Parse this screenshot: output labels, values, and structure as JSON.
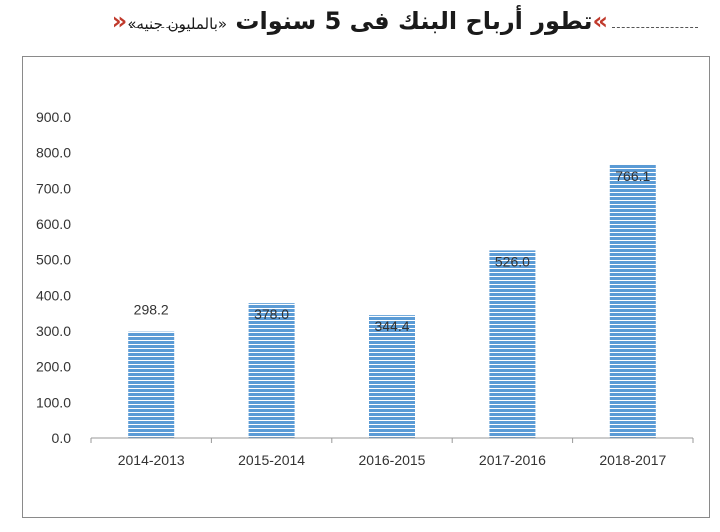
{
  "header": {
    "title": "تطور أرباح البنك فى 5 سنوات",
    "unit": "«بالمليون جنيه»",
    "quote_open": "»",
    "quote_close": "«"
  },
  "colors": {
    "bar_fill": "#5b9bd5",
    "bar_stripe": "#ffffff",
    "axis": "#999999"
  },
  "chart_data": {
    "type": "bar",
    "title": "",
    "xlabel": "",
    "ylabel": "",
    "categories": [
      "2014-2013",
      "2015-2014",
      "2016-2015",
      "2017-2016",
      "2018-2017"
    ],
    "values": [
      298.2,
      378.0,
      344.4,
      526.0,
      766.1
    ],
    "data_labels": [
      "298.2",
      "378.0",
      "344.4",
      "526.0",
      "766.1"
    ],
    "ylim": [
      0,
      900
    ],
    "yticks": [
      0,
      100,
      200,
      300,
      400,
      500,
      600,
      700,
      800,
      900
    ],
    "ytick_labels": [
      "0.0",
      "100.0",
      "200.0",
      "300.0",
      "400.0",
      "500.0",
      "600.0",
      "700.0",
      "800.0",
      "900.0"
    ],
    "grid": false,
    "legend": "none"
  }
}
